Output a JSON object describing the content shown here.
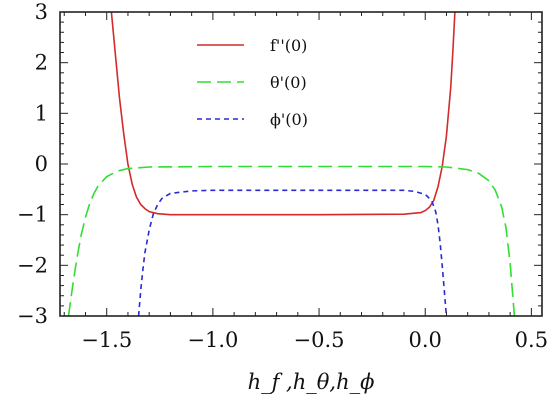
{
  "chart_data": {
    "type": "line",
    "xlabel": "h_f ,h_θ,h_ϕ",
    "xlim": [
      -1.72,
      0.55
    ],
    "ylim": [
      -3,
      3
    ],
    "x_ticks": [
      -1.5,
      -1.0,
      -0.5,
      0.0,
      0.5
    ],
    "x_tick_labels": [
      "−1.5",
      "−1.0",
      "−0.5",
      "0.0",
      "0.5"
    ],
    "y_ticks": [
      -3,
      -2,
      -1,
      0,
      1,
      2,
      3
    ],
    "y_tick_labels": [
      "−3",
      "−2",
      "−1",
      "0",
      "1",
      "2",
      "3"
    ],
    "legend": {
      "placement": "top-center"
    },
    "grid": false,
    "series": [
      {
        "name": "f''(0)",
        "color": "#d42a2a",
        "dash": "solid",
        "x": [
          -1.478,
          -1.46,
          -1.44,
          -1.42,
          -1.4,
          -1.38,
          -1.36,
          -1.34,
          -1.32,
          -1.3,
          -1.26,
          -1.2,
          -1.0,
          -0.5,
          -0.1,
          -0.02,
          0.0,
          0.02,
          0.04,
          0.06,
          0.08,
          0.1,
          0.12,
          0.13,
          0.14
        ],
        "y": [
          3.0,
          2.2,
          1.3,
          0.6,
          0.0,
          -0.4,
          -0.65,
          -0.8,
          -0.88,
          -0.94,
          -0.98,
          -1.0,
          -1.0,
          -1.0,
          -0.99,
          -0.96,
          -0.92,
          -0.85,
          -0.72,
          -0.45,
          -0.05,
          0.55,
          1.5,
          2.2,
          3.0
        ]
      },
      {
        "name": "θ'(0)",
        "color": "#33dd33",
        "dash": "long",
        "x": [
          -1.68,
          -1.66,
          -1.64,
          -1.62,
          -1.6,
          -1.58,
          -1.56,
          -1.54,
          -1.5,
          -1.45,
          -1.4,
          -1.3,
          -1.0,
          -0.5,
          0.0,
          0.1,
          0.2,
          0.25,
          0.3,
          0.33,
          0.36,
          0.38,
          0.4,
          0.42
        ],
        "y": [
          -3.0,
          -2.4,
          -1.85,
          -1.4,
          -1.05,
          -0.78,
          -0.58,
          -0.43,
          -0.25,
          -0.14,
          -0.09,
          -0.06,
          -0.05,
          -0.05,
          -0.05,
          -0.06,
          -0.11,
          -0.18,
          -0.33,
          -0.52,
          -0.85,
          -1.25,
          -1.95,
          -3.0
        ]
      },
      {
        "name": "ϕ'(0)",
        "color": "#2a2ad4",
        "dash": "short",
        "x": [
          -1.35,
          -1.34,
          -1.33,
          -1.32,
          -1.3,
          -1.28,
          -1.26,
          -1.24,
          -1.2,
          -1.1,
          -1.0,
          -0.5,
          -0.1,
          -0.05,
          0.0,
          0.03,
          0.05,
          0.06,
          0.07,
          0.08,
          0.09,
          0.1
        ],
        "y": [
          -3.0,
          -2.5,
          -2.1,
          -1.75,
          -1.3,
          -0.98,
          -0.8,
          -0.68,
          -0.58,
          -0.53,
          -0.52,
          -0.52,
          -0.52,
          -0.54,
          -0.6,
          -0.72,
          -0.95,
          -1.2,
          -1.55,
          -2.0,
          -2.5,
          -3.0
        ]
      }
    ]
  }
}
